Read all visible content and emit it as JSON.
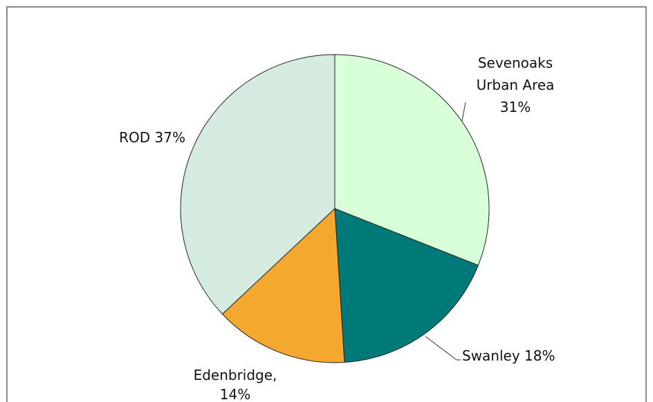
{
  "chart_data": {
    "type": "pie",
    "categories": [
      "Sevenoaks Urban Area",
      "Swanley",
      "Edenbridge,",
      "ROD"
    ],
    "values": [
      31,
      18,
      14,
      37
    ],
    "value_labels": [
      "31%",
      "18%",
      "14%",
      "37%"
    ],
    "colors": [
      "#d9ffd9",
      "#007a78",
      "#f5a830",
      "#d5ebe0"
    ]
  }
}
